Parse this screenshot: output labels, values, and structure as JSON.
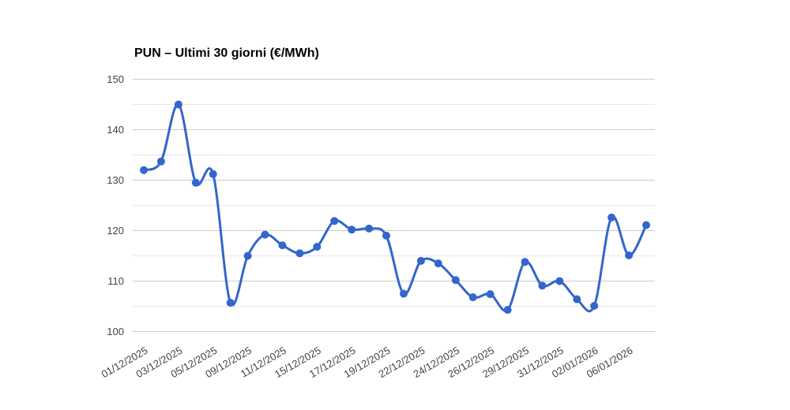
{
  "page": {
    "background": "#ffffff"
  },
  "chart_data": {
    "type": "line",
    "title": "PUN – Ultimi 30 giorni (€/MWh)",
    "unit": "€/MWh",
    "values": [
      132,
      133.7,
      145,
      129.5,
      131.2,
      105.7,
      115,
      119.2,
      117.1,
      115.5,
      116.8,
      121.9,
      120.2,
      120.4,
      119,
      107.5,
      114,
      113.5,
      110.2,
      106.8,
      107.4,
      104.3,
      113.8,
      109.1,
      110,
      106.4,
      105.1,
      122.6,
      115.1,
      121.1
    ],
    "x_tick_labels": [
      "01/12/2025",
      "03/12/2025",
      "05/12/2025",
      "09/12/2025",
      "11/12/2025",
      "15/12/2025",
      "17/12/2025",
      "19/12/2025",
      "22/12/2025",
      "24/12/2025",
      "26/12/2025",
      "29/12/2025",
      "31/12/2025",
      "02/01/2026",
      "06/01/2026"
    ],
    "x_tick_indices": [
      0,
      2,
      4,
      6,
      8,
      10,
      12,
      14,
      16,
      18,
      20,
      22,
      24,
      26,
      28
    ],
    "ylim": [
      100,
      150
    ],
    "y_major_ticks": [
      100,
      110,
      120,
      130,
      140,
      150
    ],
    "y_minor_ticks": [
      105,
      115,
      125,
      135,
      145
    ],
    "grid": true,
    "legend_position": "none",
    "smooth": true,
    "x_label_rotation_deg": -30,
    "point_radius": 5,
    "line_width": 3,
    "colors": {
      "line": "#3366cc",
      "point": "#3366cc",
      "grid_major": "#cccccc",
      "grid_minor": "#e8e8e8",
      "axis_text": "#444444",
      "title_text": "#000000",
      "background": "#ffffff"
    }
  }
}
